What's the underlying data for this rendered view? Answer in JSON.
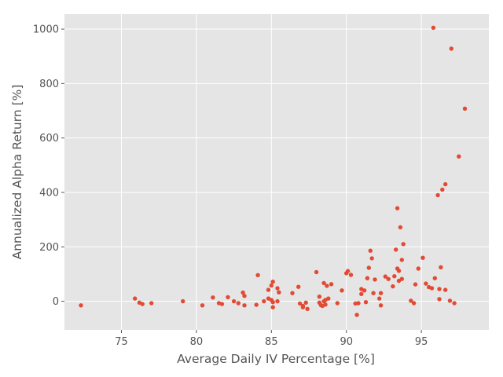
{
  "chart_data": {
    "type": "scatter",
    "title": "",
    "xlabel": "Average Daily IV Percentage [%]",
    "ylabel": "Annualized Alpha Return [%]",
    "xlim": [
      71.2,
      99.5
    ],
    "ylim": [
      -105,
      1055
    ],
    "xticks": [
      75,
      80,
      85,
      90,
      95
    ],
    "yticks": [
      0,
      200,
      400,
      600,
      800,
      1000
    ],
    "grid": true,
    "background": "#E5E5E5",
    "grid_color": "#FFFFFF",
    "point_color": "#E24A33",
    "points": [
      [
        72.3,
        -15
      ],
      [
        75.9,
        10
      ],
      [
        76.2,
        -5
      ],
      [
        76.4,
        -10
      ],
      [
        77.0,
        -7
      ],
      [
        79.1,
        0
      ],
      [
        80.4,
        -15
      ],
      [
        81.1,
        14
      ],
      [
        81.5,
        -7
      ],
      [
        81.7,
        -10
      ],
      [
        82.1,
        15
      ],
      [
        82.5,
        0
      ],
      [
        82.8,
        -7
      ],
      [
        83.1,
        32
      ],
      [
        83.2,
        20
      ],
      [
        83.2,
        -15
      ],
      [
        84.0,
        -13
      ],
      [
        84.1,
        96
      ],
      [
        84.5,
        0
      ],
      [
        84.8,
        42
      ],
      [
        84.8,
        10
      ],
      [
        85.0,
        58
      ],
      [
        85.0,
        5
      ],
      [
        85.1,
        -3
      ],
      [
        85.1,
        72
      ],
      [
        85.1,
        -22
      ],
      [
        85.4,
        48
      ],
      [
        85.4,
        0
      ],
      [
        85.5,
        33
      ],
      [
        86.4,
        30
      ],
      [
        86.8,
        53
      ],
      [
        86.9,
        -8
      ],
      [
        87.1,
        -17
      ],
      [
        87.1,
        -22
      ],
      [
        87.3,
        -5
      ],
      [
        87.4,
        -28
      ],
      [
        88.0,
        107
      ],
      [
        88.2,
        -5
      ],
      [
        88.2,
        17
      ],
      [
        88.3,
        -14
      ],
      [
        88.4,
        -17
      ],
      [
        88.5,
        0
      ],
      [
        88.5,
        67
      ],
      [
        88.6,
        5
      ],
      [
        88.6,
        -12
      ],
      [
        88.7,
        57
      ],
      [
        88.8,
        10
      ],
      [
        89.0,
        63
      ],
      [
        89.4,
        -7
      ],
      [
        89.7,
        40
      ],
      [
        90.0,
        103
      ],
      [
        90.1,
        111
      ],
      [
        90.3,
        97
      ],
      [
        90.6,
        -8
      ],
      [
        90.7,
        -50
      ],
      [
        90.8,
        -7
      ],
      [
        91.0,
        45
      ],
      [
        91.0,
        27
      ],
      [
        91.2,
        40
      ],
      [
        91.3,
        -3
      ],
      [
        91.4,
        85
      ],
      [
        91.5,
        123
      ],
      [
        91.6,
        186
      ],
      [
        91.7,
        158
      ],
      [
        91.8,
        30
      ],
      [
        91.9,
        80
      ],
      [
        92.2,
        10
      ],
      [
        92.3,
        30
      ],
      [
        92.3,
        -15
      ],
      [
        92.6,
        91
      ],
      [
        92.8,
        82
      ],
      [
        93.1,
        55
      ],
      [
        93.2,
        92
      ],
      [
        93.3,
        190
      ],
      [
        93.4,
        120
      ],
      [
        93.4,
        342
      ],
      [
        93.5,
        75
      ],
      [
        93.5,
        112
      ],
      [
        93.6,
        272
      ],
      [
        93.7,
        82
      ],
      [
        93.7,
        152
      ],
      [
        93.8,
        210
      ],
      [
        94.3,
        2
      ],
      [
        94.5,
        -7
      ],
      [
        94.6,
        62
      ],
      [
        94.8,
        120
      ],
      [
        95.1,
        160
      ],
      [
        95.3,
        65
      ],
      [
        95.5,
        52
      ],
      [
        95.7,
        48
      ],
      [
        95.8,
        1005
      ],
      [
        95.9,
        85
      ],
      [
        96.1,
        390
      ],
      [
        96.2,
        8
      ],
      [
        96.2,
        45
      ],
      [
        96.3,
        125
      ],
      [
        96.4,
        410
      ],
      [
        96.6,
        430
      ],
      [
        96.6,
        42
      ],
      [
        96.9,
        2
      ],
      [
        97.0,
        928
      ],
      [
        97.2,
        -7
      ],
      [
        97.5,
        532
      ],
      [
        97.9,
        708
      ]
    ]
  }
}
